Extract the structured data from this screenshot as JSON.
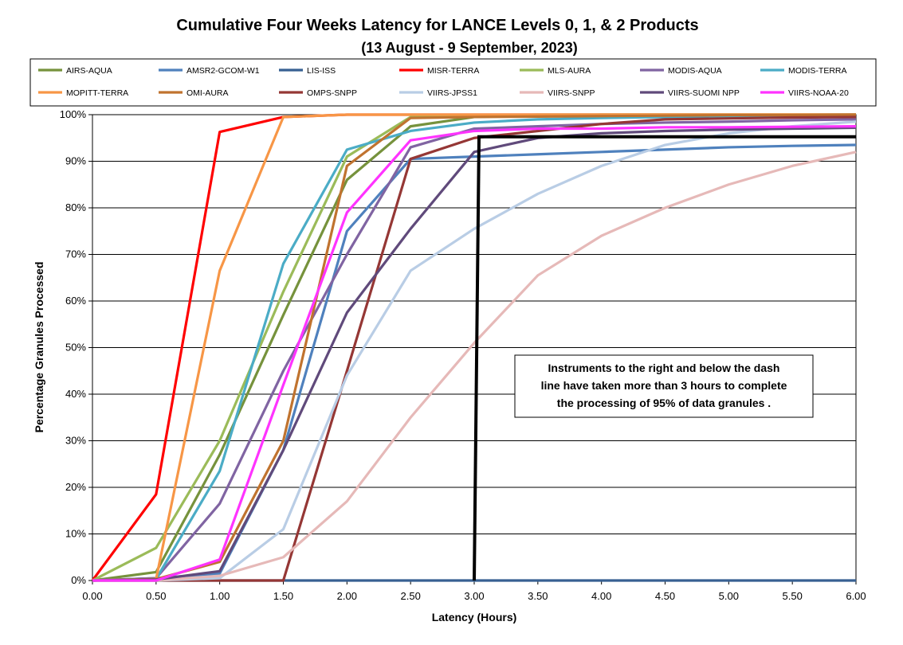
{
  "chart_data": {
    "type": "line",
    "title": "Cumulative Four Weeks Latency  for LANCE Levels 0, 1, & 2 Products",
    "subtitle": "(13 August  - 9 September, 2023)",
    "xlabel": "Latency (Hours)",
    "ylabel": "Percentage Granules Processed",
    "x": [
      0,
      0.5,
      1.0,
      1.5,
      2.0,
      2.5,
      3.0,
      3.5,
      4.0,
      4.5,
      5.0,
      5.5,
      6.0
    ],
    "x_tick_labels": [
      "0.00",
      "0.50",
      "1.00",
      "1.50",
      "2.00",
      "2.50",
      "3.00",
      "3.50",
      "4.00",
      "4.50",
      "5.00",
      "5.50",
      "6.00"
    ],
    "y_tick_labels": [
      "0%",
      "10%",
      "20%",
      "30%",
      "40%",
      "50%",
      "60%",
      "70%",
      "80%",
      "90%",
      "100%"
    ],
    "xlim": [
      0,
      6
    ],
    "ylim": [
      0,
      100
    ],
    "grid": "horizontal",
    "legend_position": "top",
    "series": [
      {
        "name": "AIRS-AQUA",
        "color": "#76923c",
        "values": [
          0,
          1.8,
          27,
          57,
          86,
          97.5,
          99.5,
          99.8,
          100,
          100,
          100,
          100,
          100
        ]
      },
      {
        "name": "AMSR2-GCOM-W1",
        "color": "#4f81bd",
        "values": [
          0,
          0.5,
          1.5,
          28,
          75,
          90.5,
          91,
          91.5,
          92,
          92.5,
          93,
          93.3,
          93.5
        ]
      },
      {
        "name": "LIS-ISS",
        "color": "#376092",
        "values": [
          0,
          0,
          0,
          0,
          0,
          0,
          0,
          0,
          0,
          0,
          0,
          0,
          0
        ]
      },
      {
        "name": "MISR-TERRA",
        "color": "#ff0000",
        "values": [
          0,
          18.5,
          96.3,
          99.5,
          100,
          100,
          100,
          100,
          100,
          100,
          100,
          100,
          100
        ]
      },
      {
        "name": "MLS-AURA",
        "color": "#9bbb59",
        "values": [
          0,
          7,
          30,
          62,
          91,
          99.5,
          99.8,
          100,
          100,
          100,
          100,
          100,
          100
        ]
      },
      {
        "name": "MODIS-AQUA",
        "color": "#8064a2",
        "values": [
          0,
          0.5,
          16.5,
          45,
          70,
          93,
          97,
          97.5,
          98,
          98.3,
          98.5,
          98.8,
          99
        ]
      },
      {
        "name": "MODIS-TERRA",
        "color": "#4bacc6",
        "values": [
          0,
          0.3,
          23.5,
          68,
          92.5,
          96.5,
          98.3,
          99,
          99.3,
          99.5,
          99.6,
          99.7,
          99.8
        ]
      },
      {
        "name": "MOPITT-TERRA",
        "color": "#f79646",
        "values": [
          0,
          0.3,
          66.5,
          99.5,
          100,
          100,
          100,
          100,
          100,
          100,
          100,
          100,
          100
        ]
      },
      {
        "name": "OMI-AURA",
        "color": "#c0732f",
        "values": [
          0,
          0.3,
          4,
          30,
          89,
          99.3,
          99.5,
          99.6,
          99.7,
          99.8,
          99.9,
          99.9,
          100
        ]
      },
      {
        "name": "OMPS-SNPP",
        "color": "#953735",
        "values": [
          0,
          0,
          0,
          0,
          45,
          90.5,
          95,
          96.5,
          98,
          99,
          99.2,
          99.4,
          99.5
        ]
      },
      {
        "name": "VIIRS-JPSS1",
        "color": "#b9cde5",
        "values": [
          0,
          0,
          0.5,
          11,
          44,
          66.5,
          75.5,
          83,
          89,
          93.5,
          96,
          97.5,
          98.5
        ]
      },
      {
        "name": "VIIRS-SNPP",
        "color": "#e6b9b8",
        "values": [
          0,
          0,
          1,
          5,
          17,
          35,
          51,
          65.5,
          74,
          80,
          85,
          89,
          92
        ]
      },
      {
        "name": "VIIRS-SUOMI NPP",
        "color": "#604a7b",
        "values": [
          0,
          0.2,
          2,
          28,
          57.5,
          75.5,
          92,
          95,
          96,
          96.5,
          96.8,
          97,
          97.2
        ]
      },
      {
        "name": "VIIRS-NOAA-20",
        "color": "#ff33ff",
        "values": [
          0,
          0,
          4.5,
          42,
          79,
          94.5,
          96.5,
          97,
          97,
          97.3,
          97.3,
          97.4,
          97.5
        ]
      }
    ],
    "threshold_line": {
      "x": 3.0,
      "y": 95,
      "color": "#000000"
    },
    "annotation": {
      "lines": [
        "Instruments to the right and below the dash",
        "line have taken more than 3 hours to complete",
        "the processing of 95% of data granules ."
      ]
    }
  }
}
